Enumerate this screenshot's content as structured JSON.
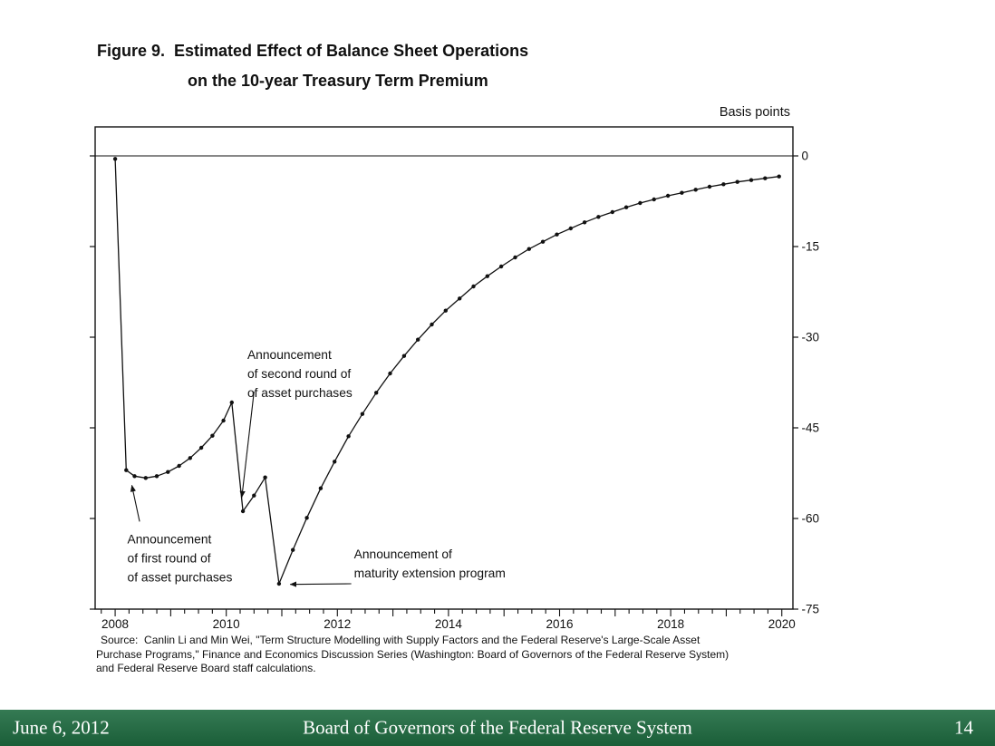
{
  "slide": {
    "title": {
      "line1": "Figure 9.  Estimated Effect of Balance Sheet Operations",
      "line2": "on the 10-year Treasury Term Premium"
    },
    "units_label": "Basis points",
    "source_lines": [
      "Source:  Canlin Li and Min Wei, \"Term Structure Modelling with Supply Factors and the Federal Reserve's Large-Scale Asset",
      "Purchase Programs,\" Finance and Economics Discussion Series (Washington: Board of Governors of the Federal Reserve System)",
      "and Federal Reserve Board staff calculations."
    ],
    "footer": {
      "date": "June 6, 2012",
      "org": "Board of Governors of the Federal Reserve System",
      "page": "14",
      "bar_color": "#1e6b40",
      "text_color": "#ffffff"
    }
  },
  "chart_data": {
    "type": "line",
    "title": "Figure 9. Estimated Effect of Balance Sheet Operations on the 10-year Treasury Term Premium",
    "xlabel": "",
    "ylabel": "Basis points",
    "xlim": [
      2007.64,
      2020.2
    ],
    "ylim": [
      -75,
      5
    ],
    "yticks": [
      0,
      -15,
      -30,
      -45,
      -60,
      -75
    ],
    "xticks_labeled": [
      2008,
      2010,
      2012,
      2014,
      2016,
      2018,
      2020
    ],
    "grid": false,
    "legend": "none",
    "line_color": "#111111",
    "series": [
      {
        "name": "Estimated effect of balance sheet operations on 10-year Treasury term premium",
        "points": [
          [
            2008.0,
            -0.5
          ],
          [
            2008.2,
            -52.0
          ],
          [
            2008.35,
            -53.0
          ],
          [
            2008.55,
            -53.3
          ],
          [
            2008.75,
            -53.0
          ],
          [
            2008.95,
            -52.3
          ],
          [
            2009.15,
            -51.3
          ],
          [
            2009.35,
            -50.0
          ],
          [
            2009.55,
            -48.3
          ],
          [
            2009.75,
            -46.3
          ],
          [
            2009.95,
            -43.8
          ],
          [
            2010.1,
            -40.8
          ],
          [
            2010.3,
            -58.8
          ],
          [
            2010.5,
            -56.2
          ],
          [
            2010.7,
            -53.2
          ],
          [
            2010.95,
            -70.8
          ],
          [
            2011.2,
            -65.2
          ],
          [
            2011.45,
            -59.9
          ],
          [
            2011.7,
            -55.0
          ],
          [
            2011.95,
            -50.6
          ],
          [
            2012.2,
            -46.4
          ],
          [
            2012.45,
            -42.7
          ],
          [
            2012.7,
            -39.2
          ],
          [
            2012.95,
            -36.0
          ],
          [
            2013.2,
            -33.1
          ],
          [
            2013.45,
            -30.4
          ],
          [
            2013.7,
            -27.9
          ],
          [
            2013.95,
            -25.6
          ],
          [
            2014.2,
            -23.6
          ],
          [
            2014.45,
            -21.6
          ],
          [
            2014.7,
            -19.9
          ],
          [
            2014.95,
            -18.3
          ],
          [
            2015.2,
            -16.8
          ],
          [
            2015.45,
            -15.4
          ],
          [
            2015.7,
            -14.2
          ],
          [
            2015.95,
            -13.0
          ],
          [
            2016.2,
            -12.0
          ],
          [
            2016.45,
            -11.0
          ],
          [
            2016.7,
            -10.1
          ],
          [
            2016.95,
            -9.3
          ],
          [
            2017.2,
            -8.5
          ],
          [
            2017.45,
            -7.8
          ],
          [
            2017.7,
            -7.2
          ],
          [
            2017.95,
            -6.6
          ],
          [
            2018.2,
            -6.1
          ],
          [
            2018.45,
            -5.6
          ],
          [
            2018.7,
            -5.1
          ],
          [
            2018.95,
            -4.7
          ],
          [
            2019.2,
            -4.3
          ],
          [
            2019.45,
            -4.0
          ],
          [
            2019.7,
            -3.7
          ],
          [
            2019.95,
            -3.4
          ]
        ]
      }
    ],
    "annotations": [
      {
        "id": "qe1",
        "lines": [
          "Announcement",
          "of first round of",
          "of asset purchases"
        ],
        "label_x": 2008.22,
        "label_y": -62.0,
        "arrow": {
          "x1": 2008.44,
          "y1": -60.5,
          "x2": 2008.3,
          "y2": -54.5
        }
      },
      {
        "id": "qe2",
        "lines": [
          "Announcement",
          "of second round of",
          "of asset purchases"
        ],
        "label_x": 2010.38,
        "label_y": -31.5,
        "arrow": {
          "x1": 2010.5,
          "y1": -39.0,
          "x2": 2010.28,
          "y2": -56.5
        }
      },
      {
        "id": "mep",
        "lines": [
          "Announcement of",
          "maturity extension program"
        ],
        "label_x": 2012.3,
        "label_y": -64.5,
        "arrow": {
          "x1": 2012.25,
          "y1": -70.8,
          "x2": 2011.15,
          "y2": -70.9
        }
      }
    ]
  }
}
